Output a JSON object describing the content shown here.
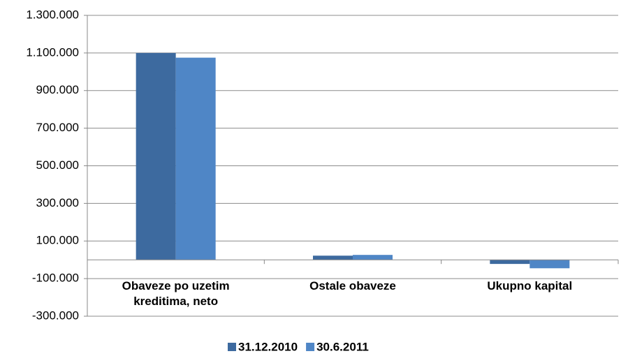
{
  "chart_data": {
    "type": "bar",
    "categories": [
      "Obaveze po uzetim kreditima, neto",
      "Ostale obaveze",
      "Ukupno kapital"
    ],
    "series": [
      {
        "name": "31.12.2010",
        "color": "#3d6a9f",
        "values": [
          1100000,
          22000,
          -22000
        ]
      },
      {
        "name": "30.6.2011",
        "color": "#4f86c6",
        "values": [
          1075000,
          26000,
          -45000
        ]
      }
    ],
    "ylim": [
      -300000,
      1300000
    ],
    "yticks": [
      {
        "value": -300000,
        "label": "-300.000"
      },
      {
        "value": -100000,
        "label": "-100.000"
      },
      {
        "value": 100000,
        "label": "100.000"
      },
      {
        "value": 300000,
        "label": "300.000"
      },
      {
        "value": 500000,
        "label": "500.000"
      },
      {
        "value": 700000,
        "label": "700.000"
      },
      {
        "value": 900000,
        "label": "900.000"
      },
      {
        "value": 1100000,
        "label": "1.100.000"
      },
      {
        "value": 1300000,
        "label": "1.300.000"
      }
    ],
    "grid": true
  }
}
